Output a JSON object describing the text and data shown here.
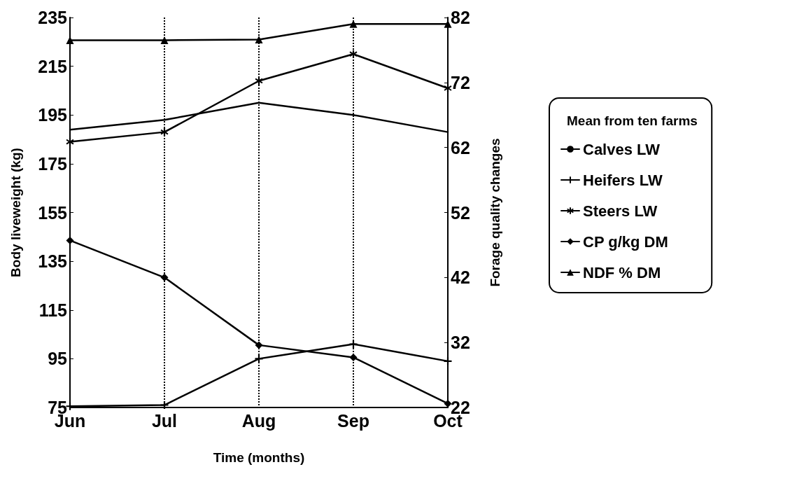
{
  "chart_data": {
    "type": "line",
    "xlabel": "Time (months)",
    "ylabel": "Body liveweight (kg)",
    "y2label": "Forage quality changes",
    "legend_title": "Mean from ten farms",
    "categories": [
      "Jun",
      "Jul",
      "Aug",
      "Sep",
      "Oct"
    ],
    "ylim": [
      75,
      235
    ],
    "yticks": [
      75,
      95,
      115,
      135,
      155,
      175,
      195,
      215,
      235
    ],
    "y2lim": [
      22,
      82
    ],
    "y2ticks": [
      22,
      32,
      42,
      52,
      62,
      72,
      82
    ],
    "grid": "x",
    "legend": "right",
    "line_style": "solid",
    "series": [
      {
        "name": "Calves LW",
        "color": "#000000",
        "marker": "none",
        "values": [
          189,
          193,
          200,
          195,
          188
        ]
      },
      {
        "name": "Heifers LW",
        "color": "#000000",
        "marker": "cross",
        "values": [
          75.5,
          76,
          95,
          101,
          94
        ]
      },
      {
        "name": "Steers LW",
        "color": "#000000",
        "marker": "star",
        "values": [
          184,
          188,
          209,
          220,
          206
        ]
      },
      {
        "name": "CP g/kg DM",
        "color": "#000000",
        "marker": "diamond",
        "axis": "y2",
        "values": [
          47.7,
          42,
          31.6,
          29.7,
          22.6
        ]
      },
      {
        "name": "NDF % DM",
        "color": "#000000",
        "marker": "triangle",
        "axis": "y2",
        "values": [
          78.5,
          78.5,
          78.6,
          81,
          81
        ]
      }
    ]
  }
}
